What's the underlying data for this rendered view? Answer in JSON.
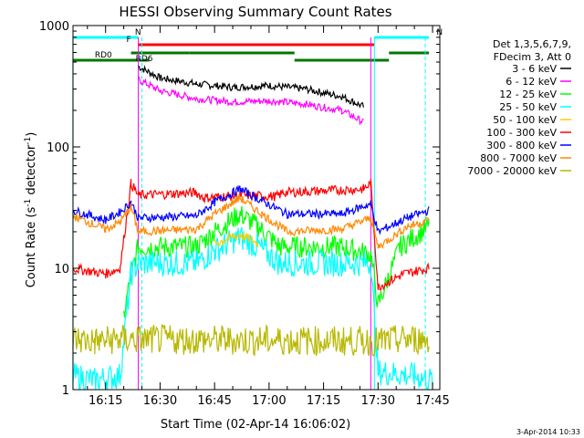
{
  "chart_data": {
    "type": "line",
    "title": "HESSI Observing Summary Count Rates",
    "xlabel": "Start Time (02-Apr-14 16:06:02)",
    "ylabel": "Count Rate (s⁻¹ detector⁻¹)",
    "yscale": "log",
    "xlim": [
      "16:06:02",
      "17:47:00"
    ],
    "ylim": [
      1,
      1000
    ],
    "x_ticks": [
      "16:15",
      "16:30",
      "16:45",
      "17:00",
      "17:15",
      "17:30",
      "17:45"
    ],
    "y_ticks": [
      "1",
      "10",
      "100",
      "1000"
    ],
    "legend_title": [
      "Det 1,3,5,6,7,9,",
      "FDecim 3, Att 0"
    ],
    "legend_placement": "right",
    "series": [
      {
        "name": "3 - 6 keV",
        "color": "#000000",
        "x": [
          "16:24",
          "16:30",
          "16:40",
          "16:50",
          "17:00",
          "17:10",
          "17:20",
          "17:26"
        ],
        "y": [
          460,
          370,
          330,
          310,
          320,
          300,
          260,
          215
        ]
      },
      {
        "name": "6 - 12 keV",
        "color": "#ff00ff",
        "x": [
          "16:24",
          "16:30",
          "16:40",
          "16:50",
          "17:00",
          "17:10",
          "17:20",
          "17:26"
        ],
        "y": [
          360,
          290,
          250,
          235,
          240,
          225,
          200,
          160
        ]
      },
      {
        "name": "12 - 25 keV",
        "color": "#00ff00",
        "x": [
          "16:06",
          "16:14",
          "16:20",
          "16:22",
          "16:24",
          "16:40",
          "16:45",
          "16:52",
          "16:57",
          "17:03",
          "17:20",
          "17:28",
          "17:30",
          "17:36",
          "17:44"
        ],
        "y": [
          null,
          null,
          4,
          9,
          15,
          15,
          20,
          28,
          22,
          15,
          15,
          13,
          5,
          15,
          22
        ]
      },
      {
        "name": "25 - 50 keV",
        "color": "#00ffff",
        "x": [
          "16:06",
          "16:12",
          "16:19",
          "16:22",
          "16:24",
          "16:40",
          "16:45",
          "16:52",
          "16:57",
          "17:03",
          "17:20",
          "17:28",
          "17:30",
          "17:40",
          "17:45"
        ],
        "y": [
          1.3,
          1.2,
          1.3,
          9,
          11,
          11,
          14,
          18,
          15,
          11,
          11,
          11,
          1.4,
          1.3,
          1.2
        ]
      },
      {
        "name": "50 - 100 keV",
        "color": "#ffcc00",
        "x": [
          "16:45",
          "16:52",
          "16:57"
        ],
        "y": [
          16,
          19,
          16
        ]
      },
      {
        "name": "100 - 300 keV",
        "color": "#ff0000",
        "x": [
          "16:06",
          "16:15",
          "16:19",
          "16:22",
          "16:24",
          "16:40",
          "16:42",
          "16:52",
          "17:02",
          "17:04",
          "17:26",
          "17:28",
          "17:30",
          "17:37",
          "17:44"
        ],
        "y": [
          10,
          9,
          10,
          50,
          40,
          42,
          38,
          40,
          39,
          42,
          45,
          50,
          7,
          9,
          10
        ]
      },
      {
        "name": "300 - 800 keV",
        "color": "#0000ff",
        "x": [
          "16:06",
          "16:15",
          "16:19",
          "16:22",
          "16:24",
          "16:40",
          "16:45",
          "16:52",
          "16:58",
          "17:05",
          "17:20",
          "17:28",
          "17:30",
          "17:38",
          "17:44"
        ],
        "y": [
          30,
          25,
          29,
          35,
          26,
          27,
          35,
          45,
          36,
          28,
          28,
          34,
          20,
          26,
          30
        ]
      },
      {
        "name": "800 - 7000 keV",
        "color": "#ff8800",
        "x": [
          "16:06",
          "16:15",
          "16:19",
          "16:22",
          "16:24",
          "16:40",
          "16:45",
          "16:52",
          "16:58",
          "17:05",
          "17:20",
          "17:28",
          "17:30",
          "17:38",
          "17:44"
        ],
        "y": [
          27,
          21,
          24,
          32,
          20,
          21,
          28,
          38,
          28,
          20,
          21,
          26,
          15,
          22,
          25
        ]
      },
      {
        "name": "7000 - 20000 keV",
        "color": "#b8b800",
        "x": [
          "16:06",
          "16:12",
          "16:19",
          "16:21",
          "17:31",
          "17:38",
          "17:44"
        ],
        "y": [
          2.6,
          2.5,
          2.6,
          null,
          2.5,
          2.6,
          2.6
        ]
      }
    ],
    "flags": [
      {
        "label": "N",
        "color": "#00ffff",
        "x": [
          "16:06",
          "16:24"
        ]
      },
      {
        "label": "N",
        "color": "#00ffff",
        "x": [
          "17:29",
          "17:44"
        ]
      },
      {
        "label": "F",
        "color": "#ff0000",
        "x": [
          "16:24",
          "17:29"
        ]
      },
      {
        "label": "RD0",
        "color": "#007700",
        "x": [
          "16:06",
          "16:27"
        ]
      },
      {
        "label": "RD6",
        "color": "#007700",
        "x": [
          "16:22",
          "16:38"
        ]
      },
      {
        "label": "",
        "color": "#007700",
        "x": [
          "16:38",
          "17:07"
        ]
      },
      {
        "label": "",
        "color": "#007700",
        "x": [
          "17:07",
          "17:33"
        ]
      },
      {
        "label": "",
        "color": "#007700",
        "x": [
          "17:33",
          "17:44"
        ]
      }
    ],
    "grid": false
  },
  "footer": {
    "timestamp": "3-Apr-2014 10:33"
  }
}
